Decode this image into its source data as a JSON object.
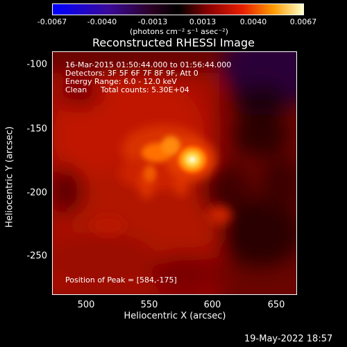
{
  "colorbar": {
    "tick_labels": [
      "-0.0067",
      "-0.0040",
      "-0.0013",
      "0.0013",
      "0.0040",
      "0.0067"
    ],
    "units_label": "(photons cm⁻² s⁻¹ asec⁻²)",
    "min": -0.0067,
    "max": 0.0067
  },
  "plot": {
    "title": "Reconstructed RHESSI Image",
    "xlabel": "Heliocentric X (arcsec)",
    "ylabel": "Heliocentric Y (arcsec)",
    "x_ticks": [
      "500",
      "550",
      "600",
      "650"
    ],
    "y_ticks": [
      "-100",
      "-150",
      "-200",
      "-250"
    ],
    "xlim": [
      473,
      666
    ],
    "ylim": [
      -281,
      -89
    ]
  },
  "info": {
    "time_range": "16-Mar-2015 01:50:44.000 to 01:56:44.000",
    "detectors": "Detectors: 3F 5F 6F 7F 8F 9F, Att 0",
    "energy_range": "Energy Range: 6.0 - 12.0 keV",
    "method": "Clean",
    "total_counts": "Total counts: 5.30E+04",
    "peak_position": "Position of Peak = [584,-175]"
  },
  "footer": {
    "date_stamp": "19-May-2022 18:57"
  }
}
